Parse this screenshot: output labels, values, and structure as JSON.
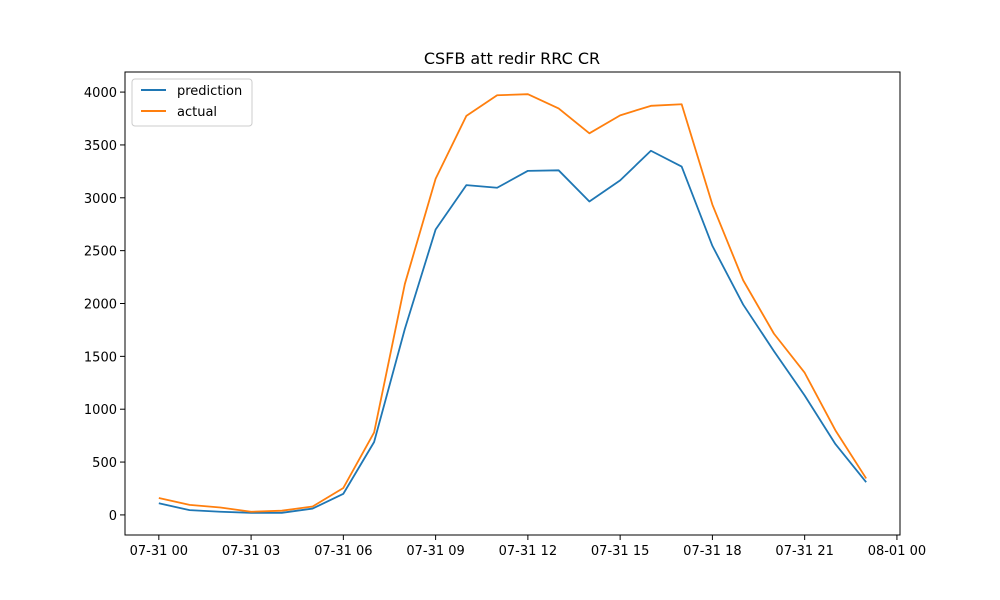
{
  "chart_data": {
    "type": "line",
    "title": "CSFB att redir RRC CR",
    "xlabel": "",
    "ylabel": "",
    "x": [
      "07-31 00:00",
      "07-31 01:00",
      "07-31 02:00",
      "07-31 03:00",
      "07-31 04:00",
      "07-31 05:00",
      "07-31 06:00",
      "07-31 07:00",
      "07-31 08:00",
      "07-31 09:00",
      "07-31 10:00",
      "07-31 11:00",
      "07-31 12:00",
      "07-31 13:00",
      "07-31 14:00",
      "07-31 15:00",
      "07-31 16:00",
      "07-31 17:00",
      "07-31 18:00",
      "07-31 19:00",
      "07-31 20:00",
      "07-31 21:00",
      "07-31 22:00",
      "07-31 23:00"
    ],
    "x_tick_labels": [
      "07-31 00",
      "07-31 03",
      "07-31 06",
      "07-31 09",
      "07-31 12",
      "07-31 15",
      "07-31 18",
      "07-31 21",
      "08-01 00"
    ],
    "x_tick_hours": [
      0,
      3,
      6,
      9,
      12,
      15,
      18,
      21,
      24
    ],
    "xlim_hours": [
      -1.1,
      24.1
    ],
    "y_tick_labels": [
      "0",
      "500",
      "1000",
      "1500",
      "2000",
      "2500",
      "3000",
      "3500",
      "4000"
    ],
    "y_ticks": [
      0,
      500,
      1000,
      1500,
      2000,
      2500,
      3000,
      3500,
      4000
    ],
    "ylim": [
      -190,
      4190
    ],
    "series": [
      {
        "name": "prediction",
        "color": "#1f77b4",
        "values": [
          110,
          45,
          30,
          20,
          20,
          60,
          200,
          690,
          1760,
          2700,
          3120,
          3095,
          3255,
          3260,
          2965,
          3165,
          3445,
          3295,
          2545,
          1990,
          1550,
          1130,
          670,
          310
        ]
      },
      {
        "name": "actual",
        "color": "#ff7f0e",
        "values": [
          160,
          95,
          70,
          30,
          40,
          80,
          255,
          780,
          2185,
          3180,
          3775,
          3970,
          3980,
          3845,
          3610,
          3780,
          3870,
          3885,
          2935,
          2220,
          1715,
          1345,
          800,
          345
        ]
      }
    ],
    "legend": {
      "position": "upper-left"
    },
    "grid": false
  }
}
